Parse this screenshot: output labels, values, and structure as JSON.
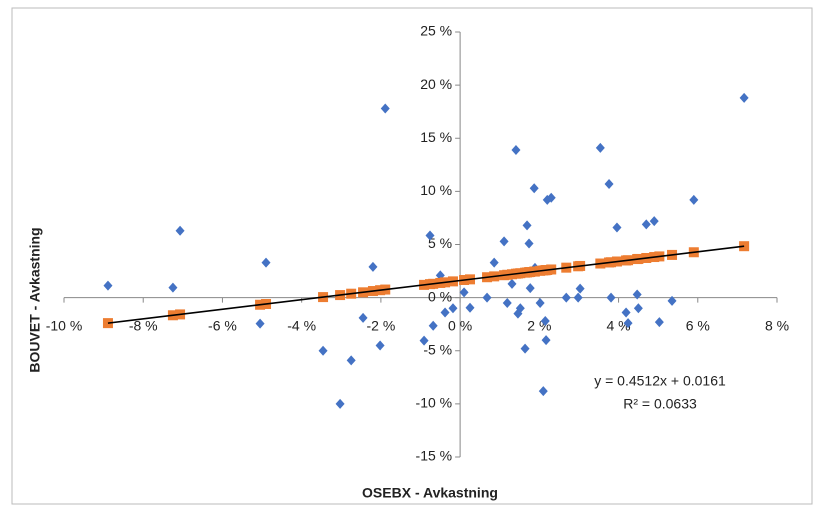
{
  "chart_data": {
    "type": "scatter",
    "x_label": "OSEBX - Avkastning",
    "y_label": "BOUVET - Avkastning",
    "x": [
      -8.89,
      -7.25,
      -7.07,
      -4.9,
      -5.05,
      -3.46,
      -2.75,
      -3.03,
      -2.45,
      -2.2,
      -2.02,
      -1.89,
      -0.91,
      -0.76,
      -0.68,
      -0.5,
      -0.38,
      -0.18,
      0.1,
      0.25,
      0.68,
      0.86,
      1.11,
      1.19,
      1.31,
      1.41,
      1.46,
      1.52,
      1.64,
      1.69,
      1.74,
      1.77,
      1.87,
      1.89,
      2.02,
      2.1,
      2.15,
      2.17,
      2.2,
      2.3,
      2.68,
      2.98,
      3.03,
      3.54,
      3.76,
      3.81,
      3.96,
      4.19,
      4.24,
      4.47,
      4.5,
      4.7,
      4.9,
      5.03,
      5.35,
      5.9,
      7.17
    ],
    "series": [
      {
        "color": "#4472c4",
        "marker": "diamond",
        "values": [
          1.13,
          0.94,
          6.3,
          3.3,
          -2.45,
          -5.0,
          -5.9,
          -10.0,
          -1.9,
          2.9,
          -4.5,
          17.8,
          -4.05,
          5.85,
          -2.65,
          2.1,
          -1.4,
          -1.0,
          0.5,
          -0.95,
          0,
          3.3,
          5.3,
          -0.5,
          1.3,
          13.9,
          -1.5,
          -1.0,
          -4.8,
          6.8,
          5.1,
          0.9,
          10.3,
          2.8,
          -0.5,
          -8.8,
          -2.2,
          -4.0,
          9.2,
          9.4,
          0,
          0,
          0.85,
          14.1,
          10.7,
          0,
          6.6,
          -1.4,
          -2.4,
          0.3,
          -1.0,
          6.9,
          7.2,
          -2.3,
          -0.3,
          9.2,
          18.8
        ]
      },
      {
        "color": "#ed7d31",
        "marker": "square",
        "values": [
          -2.4,
          -1.66,
          -1.58,
          -0.6,
          -0.67,
          0.05,
          0.37,
          0.24,
          0.5,
          0.62,
          0.7,
          0.76,
          1.2,
          1.27,
          1.3,
          1.38,
          1.44,
          1.53,
          1.66,
          1.72,
          1.92,
          2.0,
          2.11,
          2.15,
          2.2,
          2.25,
          2.27,
          2.3,
          2.35,
          2.37,
          2.4,
          2.41,
          2.45,
          2.46,
          2.52,
          2.56,
          2.58,
          2.59,
          2.6,
          2.65,
          2.82,
          2.95,
          2.98,
          3.21,
          3.31,
          3.33,
          3.4,
          3.5,
          3.52,
          3.63,
          3.64,
          3.73,
          3.82,
          3.88,
          4.02,
          4.27,
          4.84
        ]
      }
    ],
    "trendline": {
      "color": "#000000",
      "x": [
        -8.89,
        7.17
      ],
      "values": [
        -2.4,
        4.84
      ]
    },
    "annotations": [
      "y = 0.4512x + 0.0161",
      "R² = 0.0633"
    ],
    "xlim": [
      -10,
      8
    ],
    "ylim": [
      -15,
      25
    ],
    "xticks": [
      {
        "value": -10,
        "label": "-10 %"
      },
      {
        "value": -8,
        "label": "-8 %"
      },
      {
        "value": -6,
        "label": "-6 %"
      },
      {
        "value": -4,
        "label": "-4 %"
      },
      {
        "value": -2,
        "label": "-2 %"
      },
      {
        "value": 0,
        "label": "0 %"
      },
      {
        "value": 2,
        "label": "2 %"
      },
      {
        "value": 4,
        "label": "4 %"
      },
      {
        "value": 6,
        "label": "6 %"
      },
      {
        "value": 8,
        "label": "8 %"
      }
    ],
    "yticks": [
      {
        "value": -15,
        "label": "-15 %"
      },
      {
        "value": -10,
        "label": "-10 %"
      },
      {
        "value": -5,
        "label": "-5 %"
      },
      {
        "value": 0,
        "label": "0 %"
      },
      {
        "value": 5,
        "label": "5 %"
      },
      {
        "value": 10,
        "label": "10 %"
      },
      {
        "value": 15,
        "label": "15 %"
      },
      {
        "value": 20,
        "label": "20 %"
      },
      {
        "value": 25,
        "label": "25 %"
      }
    ],
    "grid": false
  }
}
